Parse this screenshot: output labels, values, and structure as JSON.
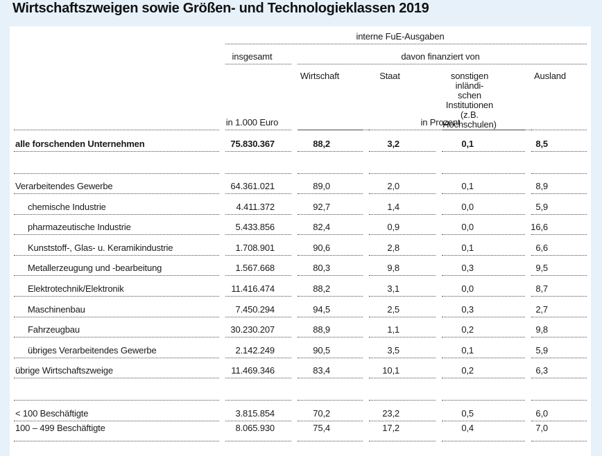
{
  "title": "Wirtschaftszweigen sowie Größen- und Technologieklassen 2019",
  "accent_colors": {
    "page_background": "#e7f1f9",
    "panel_background": "#ffffff",
    "rule_color": "#4a4a4a",
    "text_color": "#1a1a1a"
  },
  "table": {
    "header": {
      "group_top": "interne FuE-Ausgaben",
      "col_total": "insgesamt",
      "group_financed": "davon finanziert von",
      "col_wirtschaft": "Wirtschaft",
      "col_staat": "Staat",
      "col_sonstige": "sonstigen inländi-\nschen Institutionen\n(z.B. Hochschulen)",
      "col_ausland": "Ausland",
      "unit_total": "in 1.000 Euro",
      "unit_percent": "in Prozent"
    },
    "rows": [
      {
        "label": "alle forschenden Unternehmen",
        "bold": true,
        "indent": false,
        "values": [
          "75.830.367",
          "88,2",
          "3,2",
          "0,1",
          "8,5"
        ]
      },
      {
        "spacer": true
      },
      {
        "label": "Verarbeitendes Gewerbe",
        "bold": false,
        "indent": false,
        "values": [
          "64.361.021",
          "89,0",
          "2,0",
          "0,1",
          "8,9"
        ]
      },
      {
        "label": "chemische Industrie",
        "bold": false,
        "indent": true,
        "values": [
          "4.411.372",
          "92,7",
          "1,4",
          "0,0",
          "5,9"
        ]
      },
      {
        "label": "pharmazeutische Industrie",
        "bold": false,
        "indent": true,
        "values": [
          "5.433.856",
          "82,4",
          "0,9",
          "0,0",
          "16,6"
        ]
      },
      {
        "label": "Kunststoff-, Glas- u. Keramikindustrie",
        "bold": false,
        "indent": true,
        "values": [
          "1.708.901",
          "90,6",
          "2,8",
          "0,1",
          "6,6"
        ]
      },
      {
        "label": "Metallerzeugung und -bearbeitung",
        "bold": false,
        "indent": true,
        "values": [
          "1.567.668",
          "80,3",
          "9,8",
          "0,3",
          "9,5"
        ]
      },
      {
        "label": "Elektrotechnik/Elektronik",
        "bold": false,
        "indent": true,
        "values": [
          "11.416.474",
          "88,2",
          "3,1",
          "0,0",
          "8,7"
        ]
      },
      {
        "label": "Maschinenbau",
        "bold": false,
        "indent": true,
        "values": [
          "7.450.294",
          "94,5",
          "2,5",
          "0,3",
          "2,7"
        ]
      },
      {
        "label": "Fahrzeugbau",
        "bold": false,
        "indent": true,
        "values": [
          "30.230.207",
          "88,9",
          "1,1",
          "0,2",
          "9,8"
        ]
      },
      {
        "label": "übriges Verarbeitendes Gewerbe",
        "bold": false,
        "indent": true,
        "values": [
          "2.142.249",
          "90,5",
          "3,5",
          "0,1",
          "5,9"
        ]
      },
      {
        "label": "übrige Wirtschaftszweige",
        "bold": false,
        "indent": false,
        "values": [
          "11.469.346",
          "83,4",
          "10,1",
          "0,2",
          "6,3"
        ]
      },
      {
        "spacer": true
      },
      {
        "label": "< 100 Beschäftigte",
        "bold": false,
        "indent": false,
        "values": [
          "3.815.854",
          "70,2",
          "23,2",
          "0,5",
          "6,0"
        ]
      },
      {
        "label": "100 – 499 Beschäftigte",
        "bold": false,
        "indent": false,
        "partial": true,
        "values": [
          "8.065.930",
          "75,4",
          "17,2",
          "0,4",
          "7,0"
        ]
      }
    ]
  }
}
